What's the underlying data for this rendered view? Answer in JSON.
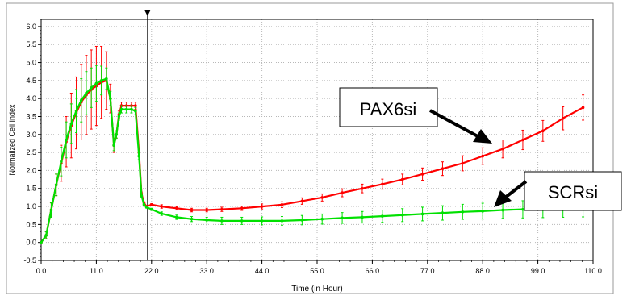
{
  "chart_data": {
    "type": "line",
    "xlabel": "Time (in Hour)",
    "ylabel": "Normalized Cell Index",
    "xlim": [
      0,
      110
    ],
    "ylim": [
      -0.5,
      6.2
    ],
    "x_ticks": [
      0,
      11,
      22,
      33,
      44,
      55,
      66,
      77,
      88,
      99,
      110
    ],
    "x_tick_labels": [
      "0.0",
      "11.0",
      "22.0",
      "33.0",
      "44.0",
      "55.0",
      "66.0",
      "77.0",
      "88.0",
      "99.0",
      "110.0"
    ],
    "y_ticks": [
      -0.5,
      0,
      0.5,
      1,
      1.5,
      2,
      2.5,
      3,
      3.5,
      4,
      4.5,
      5,
      5.5,
      6
    ],
    "y_tick_labels": [
      "-0.5",
      "0.0",
      "0.5",
      "1.0",
      "1.5",
      "2.0",
      "2.5",
      "3.0",
      "3.5",
      "4.0",
      "4.5",
      "5.0",
      "5.5",
      "6.0"
    ],
    "grid": true,
    "marker_line_x": 21.2,
    "series": [
      {
        "name": "PAX6si",
        "color": "#ff0000",
        "x": [
          0,
          1,
          2,
          3,
          4,
          5,
          6,
          7,
          8,
          9,
          10,
          11,
          12,
          13,
          13.8,
          14.5,
          15,
          15.5,
          16,
          17,
          18,
          18.8,
          19.5,
          20,
          20.5,
          21,
          22,
          24,
          27,
          30,
          33,
          36,
          40,
          44,
          48,
          52,
          56,
          60,
          64,
          68,
          72,
          76,
          80,
          84,
          88,
          92,
          96,
          100,
          104,
          108
        ],
        "y": [
          0,
          0.2,
          0.9,
          1.6,
          2.2,
          2.8,
          3.25,
          3.6,
          3.9,
          4.1,
          4.25,
          4.35,
          4.45,
          4.5,
          4.0,
          2.7,
          3.0,
          3.55,
          3.8,
          3.8,
          3.8,
          3.8,
          2.5,
          1.35,
          1.1,
          1.0,
          1.05,
          1.0,
          0.95,
          0.9,
          0.9,
          0.92,
          0.95,
          1.0,
          1.05,
          1.15,
          1.25,
          1.38,
          1.5,
          1.62,
          1.75,
          1.9,
          2.05,
          2.2,
          2.4,
          2.6,
          2.85,
          3.1,
          3.45,
          3.75
        ],
        "err": [
          0,
          0.1,
          0.2,
          0.3,
          0.5,
          0.7,
          0.9,
          1.0,
          1.05,
          1.1,
          1.1,
          1.1,
          1.0,
          0.8,
          0.4,
          0.2,
          0.1,
          0.1,
          0.1,
          0.1,
          0.1,
          0.1,
          0.1,
          0.05,
          0.03,
          0.02,
          0.03,
          0.05,
          0.05,
          0.05,
          0.05,
          0.06,
          0.06,
          0.07,
          0.08,
          0.09,
          0.1,
          0.11,
          0.12,
          0.14,
          0.15,
          0.17,
          0.19,
          0.21,
          0.23,
          0.25,
          0.27,
          0.29,
          0.32,
          0.35
        ],
        "label": "PAX6si"
      },
      {
        "name": "SCRsi",
        "color": "#00e000",
        "x": [
          0,
          1,
          2,
          3,
          4,
          5,
          6,
          7,
          8,
          9,
          10,
          11,
          12,
          13,
          13.8,
          14.5,
          15,
          15.5,
          16,
          17,
          18,
          18.8,
          19.5,
          20,
          20.5,
          21,
          22,
          24,
          27,
          30,
          33,
          36,
          40,
          44,
          48,
          52,
          56,
          60,
          64,
          68,
          72,
          76,
          80,
          84,
          88,
          92,
          96,
          100,
          104,
          108
        ],
        "y": [
          0,
          0.2,
          0.9,
          1.6,
          2.25,
          2.85,
          3.3,
          3.65,
          3.95,
          4.15,
          4.3,
          4.42,
          4.5,
          4.55,
          4.0,
          2.7,
          3.0,
          3.5,
          3.7,
          3.7,
          3.7,
          3.65,
          2.4,
          1.3,
          1.05,
          0.98,
          0.92,
          0.8,
          0.7,
          0.65,
          0.62,
          0.6,
          0.6,
          0.6,
          0.6,
          0.62,
          0.65,
          0.68,
          0.7,
          0.73,
          0.76,
          0.79,
          0.82,
          0.85,
          0.87,
          0.9,
          0.92,
          0.94,
          0.96,
          0.98
        ],
        "err": [
          0,
          0.1,
          0.2,
          0.3,
          0.4,
          0.5,
          0.55,
          0.6,
          0.6,
          0.6,
          0.55,
          0.5,
          0.4,
          0.3,
          0.2,
          0.15,
          0.1,
          0.1,
          0.1,
          0.1,
          0.1,
          0.1,
          0.1,
          0.05,
          0.03,
          0.02,
          0.03,
          0.05,
          0.06,
          0.07,
          0.08,
          0.1,
          0.1,
          0.11,
          0.12,
          0.13,
          0.14,
          0.15,
          0.16,
          0.17,
          0.18,
          0.19,
          0.2,
          0.21,
          0.22,
          0.23,
          0.24,
          0.25,
          0.26,
          0.27
        ],
        "label": "SCRsi"
      }
    ]
  }
}
